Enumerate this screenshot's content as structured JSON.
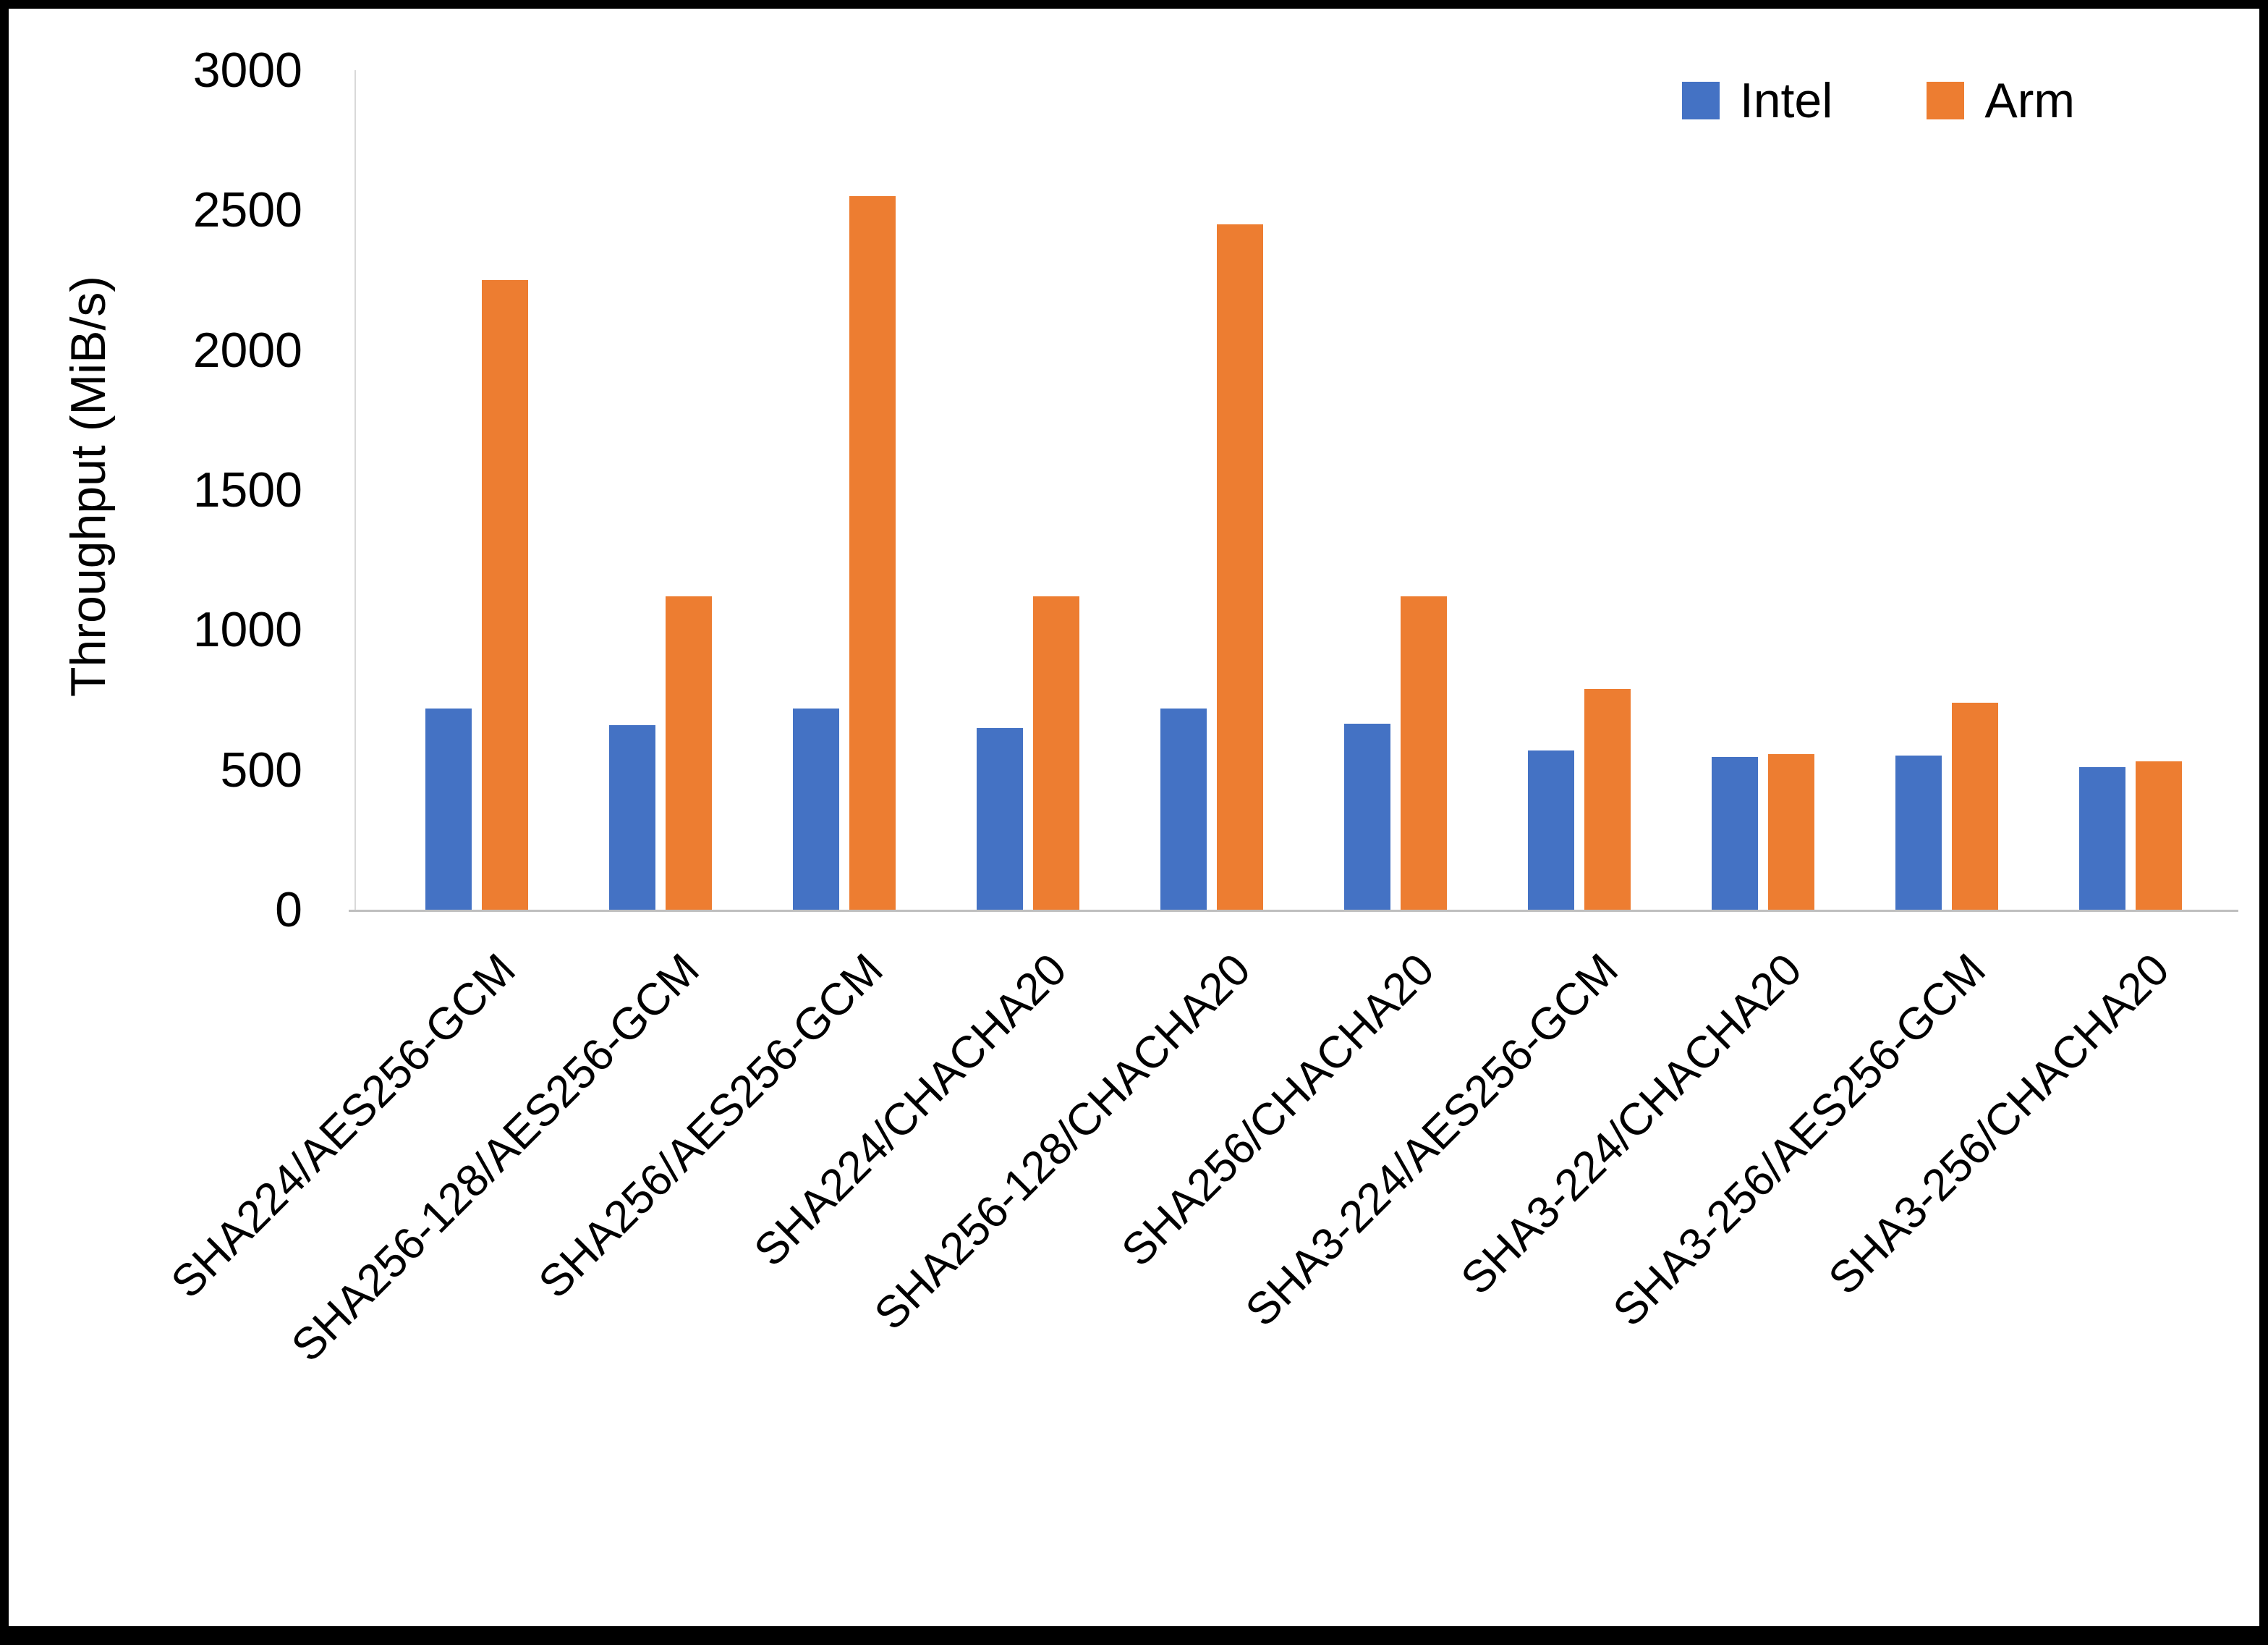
{
  "chart_data": {
    "type": "bar",
    "title": "",
    "xlabel": "",
    "ylabel": "Throughput (MiB/s)",
    "ylim": [
      0,
      3000
    ],
    "ytick_step": 500,
    "grid": false,
    "legend_position": "top-right",
    "categories": [
      "SHA224/AES256-GCM",
      "SHA256-128/AES256-GCM",
      "SHA256/AES256-GCM",
      "SHA224/CHACHA20",
      "SHA256-128/CHACHA20",
      "SHA256/CHACHA20",
      "SHA3-224/AES256-GCM",
      "SHA3-224/CHACHA20",
      "SHA3-256/AES256-GCM",
      "SHA3-256/CHACHA20"
    ],
    "series": [
      {
        "name": "Intel",
        "color": "#4472C4",
        "values": [
          720,
          660,
          720,
          650,
          720,
          665,
          570,
          545,
          550,
          510
        ]
      },
      {
        "name": "Arm",
        "color": "#ED7D31",
        "values": [
          2250,
          1120,
          2550,
          1120,
          2450,
          1120,
          790,
          555,
          740,
          530
        ]
      }
    ]
  }
}
